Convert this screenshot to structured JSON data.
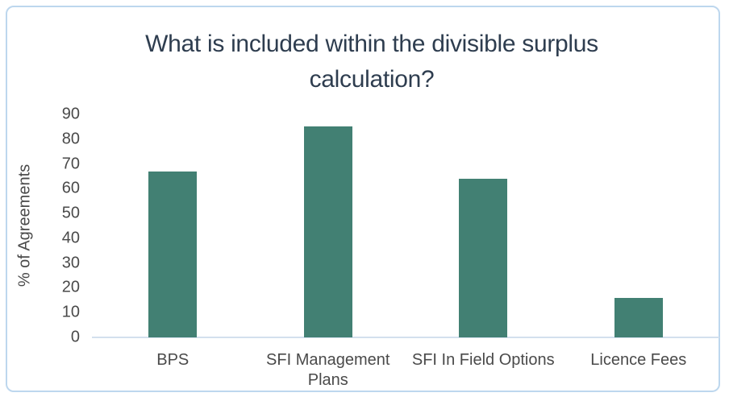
{
  "chart_data": {
    "type": "bar",
    "title": "What is included within the divisible surplus calculation?",
    "xlabel": "",
    "ylabel": "% of Agreements",
    "categories": [
      "BPS",
      "SFI Management Plans",
      "SFI In Field Options",
      "Licence Fees"
    ],
    "values": [
      67,
      85,
      64,
      16
    ],
    "ylim": [
      0,
      90
    ],
    "yticks": [
      90,
      80,
      70,
      60,
      50,
      40,
      30,
      20,
      10,
      0
    ],
    "grid": false,
    "legend": false,
    "colors": {
      "bar": "#428073",
      "axis_line": "#D3E0EE",
      "frame_border": "#BDD7EE",
      "title_text": "#2E3D4F",
      "axis_text": "#4A4A4A"
    }
  }
}
